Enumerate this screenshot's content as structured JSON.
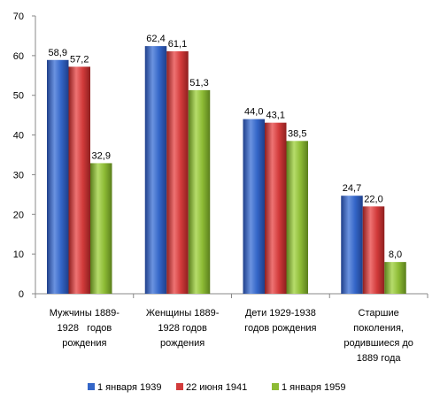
{
  "chart_data": {
    "type": "bar",
    "categories": [
      [
        "Мужчины 1889-",
        "1928   годов",
        "рождения"
      ],
      [
        "Женщины 1889-",
        "1928 годов",
        "рождения"
      ],
      [
        "Дети 1929-1938",
        "годов рождения"
      ],
      [
        "Старшие",
        "поколения,",
        "родившиеся до",
        "1889 года"
      ]
    ],
    "series": [
      {
        "name": "1 января 1939",
        "values": [
          58.9,
          62.4,
          44.0,
          24.7
        ],
        "labels": [
          "58,9",
          "62,4",
          "44,0",
          "24,7"
        ],
        "color": "#3466c8",
        "dark": "#1f3f8a",
        "light": "#6b93e0"
      },
      {
        "name": "22 июня 1941",
        "values": [
          57.2,
          61.1,
          43.1,
          22.0
        ],
        "labels": [
          "57,2",
          "61,1",
          "43,1",
          "22,0"
        ],
        "color": "#d23b3b",
        "dark": "#8e1f1f",
        "light": "#ee7373"
      },
      {
        "name": "1 января 1959",
        "values": [
          32.9,
          51.3,
          38.5,
          8.0
        ],
        "labels": [
          "32,9",
          "51,3",
          "38,5",
          "8,0"
        ],
        "color": "#8dbb35",
        "dark": "#5a7e1c",
        "light": "#b6dc6b"
      }
    ],
    "ylim": [
      0,
      70
    ],
    "yticks": [
      0,
      10,
      20,
      30,
      40,
      50,
      60,
      70
    ],
    "grid": false,
    "legend": "bottom"
  }
}
